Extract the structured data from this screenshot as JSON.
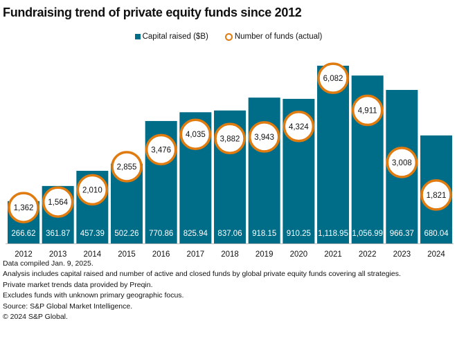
{
  "title": "Fundraising trend of private equity  funds since 2012",
  "legend": {
    "bars": "Capital raised ($B)",
    "circles": "Number of funds (actual)"
  },
  "colors": {
    "bar": "#006d88",
    "circle_stroke": "#e07b10"
  },
  "chart_data": {
    "type": "bar",
    "title": "Fundraising trend of private equity  funds since 2012",
    "categories": [
      "2012",
      "2013",
      "2014",
      "2015",
      "2016",
      "2017",
      "2018",
      "2019",
      "2020",
      "2021",
      "2022",
      "2023",
      "2024"
    ],
    "series": [
      {
        "name": "Capital raised ($B)",
        "type": "bar",
        "values": [
          266.62,
          361.87,
          457.39,
          502.26,
          770.86,
          825.94,
          837.06,
          918.15,
          910.25,
          1118.95,
          1056.99,
          966.37,
          680.04
        ],
        "labels": [
          "266.62",
          "361.87",
          "457.39",
          "502.26",
          "770.86",
          "825.94",
          "837.06",
          "918.15",
          "910.25",
          "1,118.95",
          "1,056.99",
          "966.37",
          "680.04"
        ]
      },
      {
        "name": "Number of funds (actual)",
        "type": "scatter",
        "values": [
          1362,
          1564,
          2010,
          2855,
          3476,
          4035,
          3882,
          3943,
          4324,
          6082,
          4911,
          3008,
          1821
        ],
        "labels": [
          "1,362",
          "1,564",
          "2,010",
          "2,855",
          "3,476",
          "4,035",
          "3,882",
          "3,943",
          "4,324",
          "6,082",
          "4,911",
          "3,008",
          "1,821"
        ]
      }
    ],
    "legend": "top-center",
    "grid": false
  },
  "notes": [
    "Data compiled Jan. 9, 2025.",
    "Analysis includes capital raised and number of active and closed funds by global private equity funds covering all strategies.",
    "Private market trends data provided by Preqin.",
    "Excludes funds with unknown primary geographic focus.",
    "Source: S&P Global Market Intelligence.",
    "© 2024 S&P Global."
  ]
}
